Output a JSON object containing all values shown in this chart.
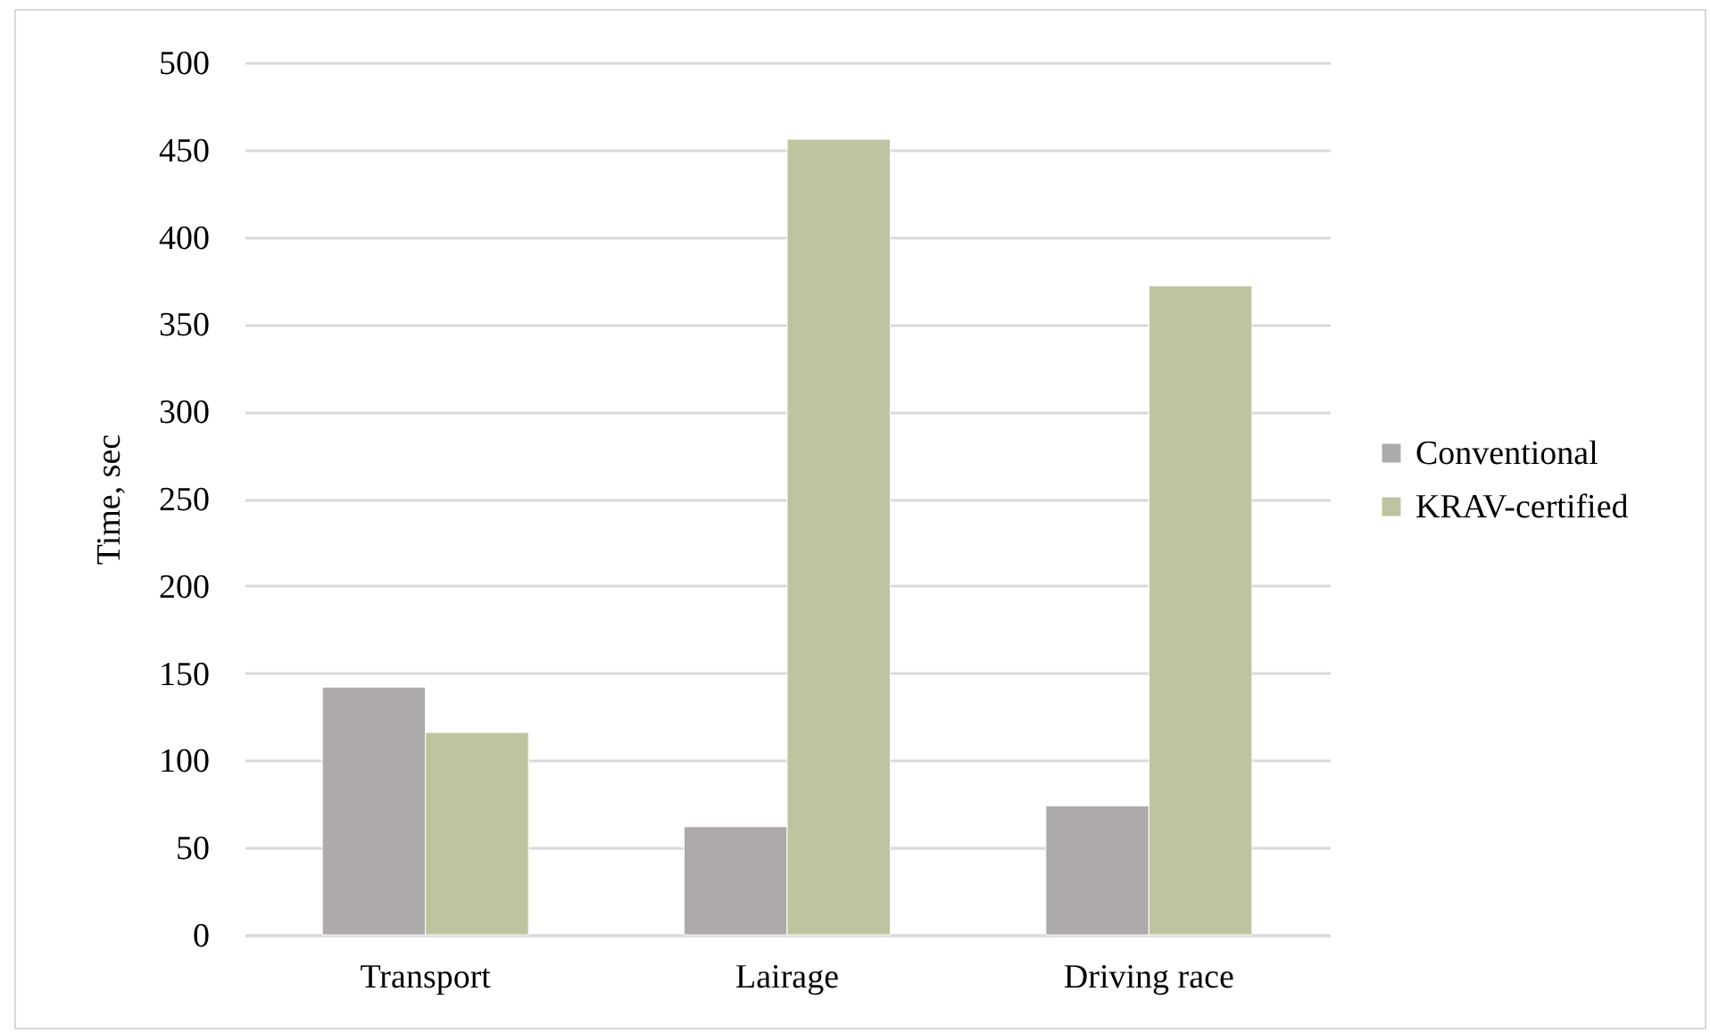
{
  "chart_data": {
    "type": "bar",
    "ylabel": "Time, sec",
    "categories": [
      "Transport",
      "Lairage",
      "Driving race"
    ],
    "series": [
      {
        "name": "Conventional",
        "color": "#aeaaaa",
        "values": [
          142,
          62,
          74
        ]
      },
      {
        "name": "KRAV-certified",
        "color": "#bdc5a0",
        "values": [
          116,
          456,
          372
        ]
      }
    ],
    "ylim": [
      0,
      500
    ],
    "yticks": [
      0,
      50,
      100,
      150,
      200,
      250,
      300,
      350,
      400,
      450,
      500
    ],
    "grid": "y",
    "legend": "right"
  }
}
